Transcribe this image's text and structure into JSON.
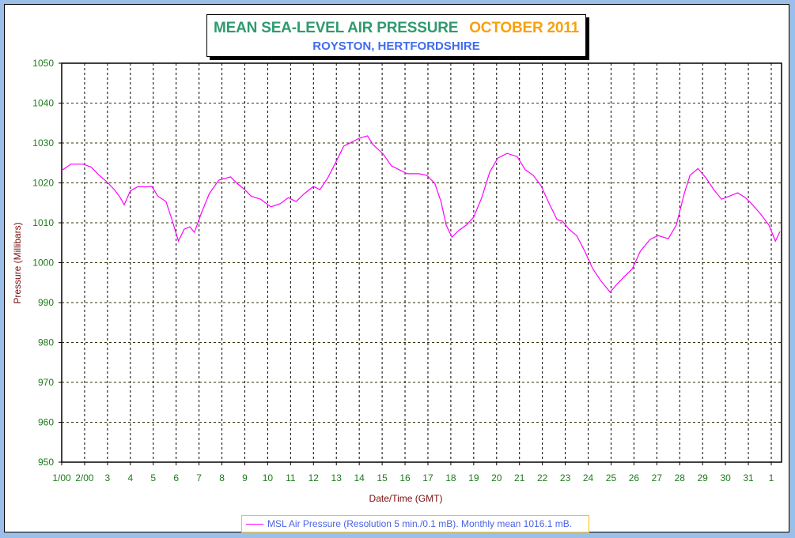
{
  "chart_data": {
    "type": "line",
    "title": "MEAN SEA-LEVEL AIR PRESSURE",
    "title_period": "OCTOBER 2011",
    "subtitle": "ROYSTON, HERTFORDSHIRE",
    "xlabel": "Date/Time (GMT)",
    "ylabel": "Pressure (Millibars)",
    "ylim": [
      950,
      1050
    ],
    "xlim_days": [
      0,
      31.45
    ],
    "yticks": [
      "950",
      "960",
      "970",
      "980",
      "990",
      "1000",
      "1010",
      "1020",
      "1030",
      "1040",
      "1050"
    ],
    "xticks": [
      "1/00",
      "2/00",
      "3",
      "4",
      "5",
      "6",
      "7",
      "8",
      "9",
      "10",
      "11",
      "12",
      "13",
      "14",
      "15",
      "16",
      "17",
      "18",
      "19",
      "20",
      "21",
      "22",
      "23",
      "24",
      "25",
      "26",
      "27",
      "28",
      "29",
      "30",
      "31",
      "1"
    ],
    "grid": true,
    "legend": "bottom",
    "legend_text": "MSL Air Pressure (Resolution 5 min./0.1 mB). Monthly mean 1016.1 mB.",
    "series": [
      {
        "name": "MSL Air Pressure",
        "color": "#ff00ff",
        "x_days": [
          0,
          0.4,
          0.93,
          1.28,
          1.62,
          1.97,
          2.3,
          2.56,
          2.73,
          3.0,
          3.35,
          3.7,
          3.94,
          4.2,
          4.56,
          4.84,
          5.1,
          5.35,
          5.6,
          5.8,
          6.1,
          6.45,
          6.86,
          7.38,
          7.66,
          8.0,
          8.27,
          8.69,
          9.14,
          9.55,
          9.9,
          10.24,
          10.6,
          11.0,
          11.28,
          11.63,
          11.98,
          12.32,
          12.67,
          13.0,
          13.36,
          13.6,
          14.05,
          14.4,
          14.74,
          15.1,
          15.6,
          15.95,
          16.3,
          16.57,
          16.8,
          17.05,
          17.33,
          17.67,
          18.0,
          18.35,
          18.7,
          19.05,
          19.46,
          19.9,
          20.25,
          20.6,
          20.94,
          21.3,
          21.64,
          21.88,
          22.16,
          22.5,
          22.85,
          23.2,
          23.55,
          23.96,
          24.24,
          24.58,
          24.93,
          25.28,
          25.7,
          26.05,
          26.5,
          26.85,
          27.2,
          27.45,
          27.8,
          28.14,
          28.49,
          28.83,
          29.18,
          29.53,
          29.87,
          30.2,
          30.56,
          30.9,
          31.18,
          31.38
        ],
        "values": [
          1023.1,
          1024.7,
          1024.7,
          1024.0,
          1022.0,
          1020.3,
          1018.3,
          1016.3,
          1014.5,
          1018.0,
          1019.1,
          1019.0,
          1019.1,
          1016.7,
          1015.3,
          1010.4,
          1005.4,
          1008.4,
          1009.0,
          1007.6,
          1012.4,
          1017.3,
          1020.7,
          1021.5,
          1019.9,
          1018.3,
          1016.7,
          1015.9,
          1014.0,
          1014.8,
          1016.3,
          1015.3,
          1017.3,
          1019.1,
          1018.3,
          1021.3,
          1025.2,
          1029.2,
          1030.2,
          1031.2,
          1031.8,
          1029.6,
          1027.2,
          1024.3,
          1023.3,
          1022.3,
          1022.3,
          1021.9,
          1019.9,
          1015.3,
          1009.4,
          1006.4,
          1008.0,
          1009.4,
          1011.4,
          1016.3,
          1022.7,
          1026.2,
          1027.4,
          1026.6,
          1023.3,
          1021.9,
          1019.3,
          1014.8,
          1010.8,
          1010.4,
          1008.4,
          1006.8,
          1002.9,
          998.5,
          995.5,
          992.6,
          994.5,
          996.5,
          998.5,
          1002.9,
          1005.8,
          1006.8,
          1006.0,
          1009.4,
          1017.3,
          1021.9,
          1023.6,
          1021.3,
          1018.3,
          1015.9,
          1016.7,
          1017.5,
          1016.3,
          1014.4,
          1012.0,
          1009.4,
          1005.4,
          1007.8
        ]
      }
    ]
  }
}
